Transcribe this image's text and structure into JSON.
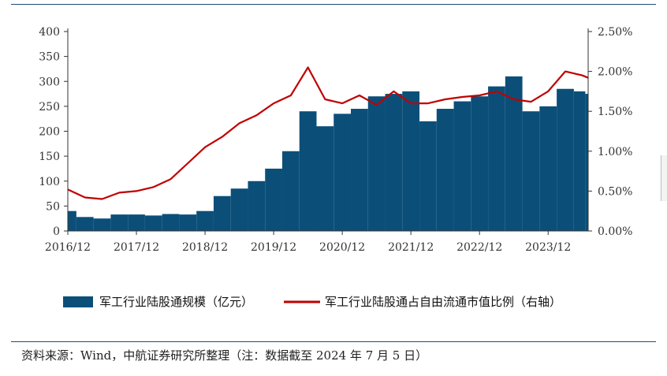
{
  "colors": {
    "bar": "#0b4f79",
    "line": "#c00000",
    "axis": "#333333",
    "rule": "#1f4e79"
  },
  "source": "资料来源：Wind，中航证券研究所整理（注：数据截至 2024 年 7 月 5 日）",
  "chart_data": {
    "type": "bar",
    "title": "",
    "xlabel": "",
    "ylabel": "",
    "ylim": [
      0,
      400
    ],
    "y2lim": [
      0,
      0.025
    ],
    "yticks": [
      "0",
      "50",
      "100",
      "150",
      "200",
      "250",
      "300",
      "350",
      "400"
    ],
    "y2ticks": [
      "0.00%",
      "0.50%",
      "1.00%",
      "1.50%",
      "2.00%",
      "2.50%"
    ],
    "xticks": [
      "2016/12",
      "2017/12",
      "2018/12",
      "2019/12",
      "2020/12",
      "2021/12",
      "2022/12",
      "2023/12"
    ],
    "legend_position": "bottom",
    "series": [
      {
        "name": "军工行业陆股通规模（亿元）",
        "type": "bar",
        "axis": "left",
        "x": [
          "2016-12",
          "2017-03",
          "2017-06",
          "2017-09",
          "2017-12",
          "2018-03",
          "2018-06",
          "2018-09",
          "2018-12",
          "2019-03",
          "2019-06",
          "2019-09",
          "2019-12",
          "2020-03",
          "2020-06",
          "2020-09",
          "2020-12",
          "2021-03",
          "2021-06",
          "2021-09",
          "2021-12",
          "2022-03",
          "2022-06",
          "2022-09",
          "2022-12",
          "2023-03",
          "2023-06",
          "2023-09",
          "2023-12",
          "2024-03",
          "2024-06",
          "2024-07"
        ],
        "values": [
          40,
          28,
          25,
          33,
          33,
          31,
          34,
          33,
          40,
          70,
          85,
          100,
          125,
          160,
          240,
          210,
          235,
          245,
          270,
          275,
          280,
          220,
          245,
          260,
          270,
          290,
          310,
          240,
          250,
          285,
          280,
          275
        ]
      },
      {
        "name": "军工行业陆股通占自由流通市值比例（右轴）",
        "type": "line",
        "axis": "right",
        "x": [
          "2016-12",
          "2017-03",
          "2017-06",
          "2017-09",
          "2017-12",
          "2018-03",
          "2018-06",
          "2018-09",
          "2018-12",
          "2019-03",
          "2019-06",
          "2019-09",
          "2019-12",
          "2020-03",
          "2020-06",
          "2020-09",
          "2020-12",
          "2021-03",
          "2021-06",
          "2021-09",
          "2021-12",
          "2022-03",
          "2022-06",
          "2022-09",
          "2022-12",
          "2023-03",
          "2023-06",
          "2023-09",
          "2023-12",
          "2024-03",
          "2024-06",
          "2024-07"
        ],
        "values": [
          0.0052,
          0.0042,
          0.004,
          0.0048,
          0.005,
          0.0055,
          0.0065,
          0.0085,
          0.0105,
          0.0118,
          0.0135,
          0.0145,
          0.016,
          0.017,
          0.0205,
          0.0165,
          0.016,
          0.017,
          0.0158,
          0.0175,
          0.016,
          0.016,
          0.0165,
          0.0168,
          0.017,
          0.0175,
          0.0165,
          0.0162,
          0.0175,
          0.02,
          0.0195,
          0.0192
        ]
      }
    ]
  }
}
